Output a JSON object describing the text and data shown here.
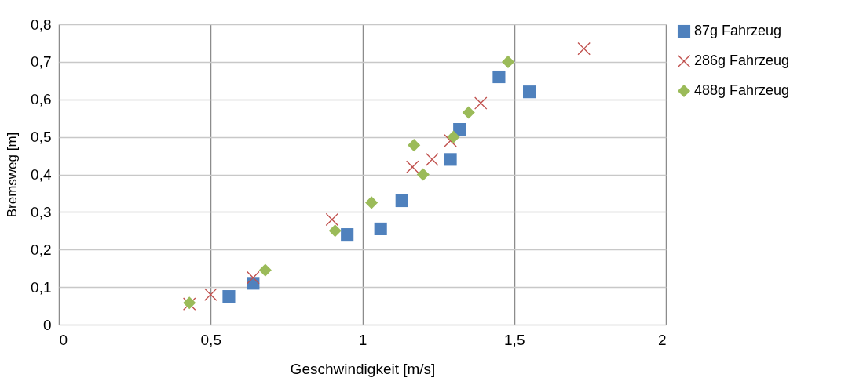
{
  "chart_data": {
    "type": "scatter",
    "xlabel": "Geschwindigkeit [m/s]",
    "ylabel": "Bremsweg [m]",
    "xlim": [
      0,
      2
    ],
    "xticks": [
      0,
      {
        "value": 0.5,
        "label": "0,5"
      },
      1,
      {
        "value": 1.5,
        "label": "1,5"
      },
      2
    ],
    "ylim": [
      0,
      0.8
    ],
    "yticks": [
      0,
      {
        "value": 0.1,
        "label": "0,1"
      },
      {
        "value": 0.2,
        "label": "0,2"
      },
      {
        "value": 0.3,
        "label": "0,3"
      },
      {
        "value": 0.4,
        "label": "0,4"
      },
      {
        "value": 0.5,
        "label": "0,5"
      },
      {
        "value": 0.6,
        "label": "0,6"
      },
      {
        "value": 0.7,
        "label": "0,7"
      },
      {
        "value": 0.8,
        "label": "0,8"
      }
    ],
    "grid": true,
    "legend": "right",
    "series": [
      {
        "name": "87g Fahrzeug",
        "color": "#4f81bd",
        "marker": "square",
        "x": [
          0.56,
          0.64,
          0.95,
          1.06,
          1.13,
          1.29,
          1.32,
          1.45,
          1.55
        ],
        "values": [
          0.075,
          0.11,
          0.24,
          0.255,
          0.33,
          0.44,
          0.52,
          0.66,
          0.62
        ]
      },
      {
        "name": "286g Fahrzeug",
        "color": "#c0504d",
        "marker": "cross",
        "x": [
          0.43,
          0.5,
          0.64,
          0.9,
          1.165,
          1.23,
          1.29,
          1.39,
          1.73
        ],
        "values": [
          0.055,
          0.08,
          0.125,
          0.28,
          0.42,
          0.44,
          0.49,
          0.59,
          0.735
        ]
      },
      {
        "name": "488g Fahrzeug",
        "color": "#9bbb59",
        "marker": "diamond",
        "x": [
          0.43,
          0.68,
          0.91,
          1.03,
          1.17,
          1.2,
          1.3,
          1.35,
          1.48
        ],
        "values": [
          0.058,
          0.145,
          0.25,
          0.325,
          0.478,
          0.4,
          0.5,
          0.565,
          0.7
        ]
      }
    ]
  }
}
